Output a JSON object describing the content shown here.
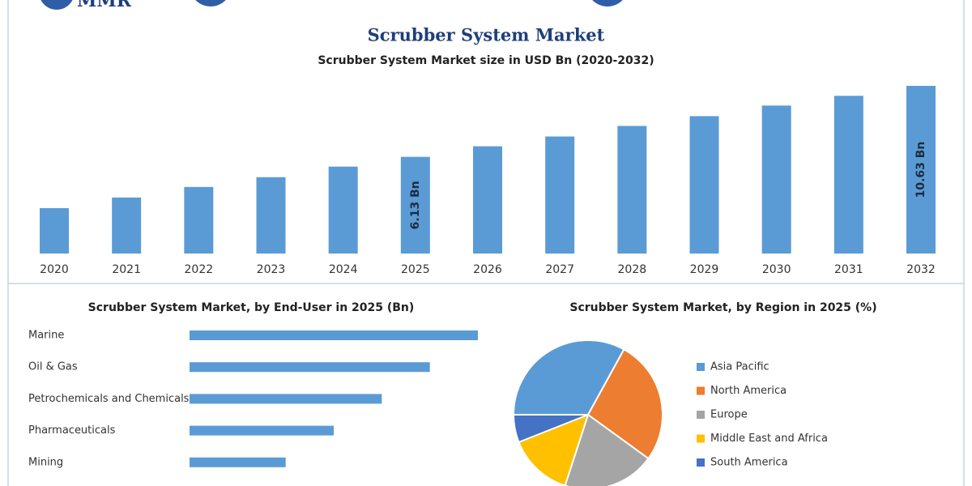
{
  "header": {
    "logo": "MMR"
  },
  "chart_data": [
    {
      "type": "bar",
      "title": "Scrubber System Market",
      "subtitle": "Scrubber System Market size in USD Bn (2020-2032)",
      "categories": [
        "2020",
        "2021",
        "2022",
        "2023",
        "2024",
        "2025",
        "2026",
        "2027",
        "2028",
        "2029",
        "2030",
        "2031",
        "2032"
      ],
      "values": [
        2.88,
        3.55,
        4.22,
        4.84,
        5.51,
        6.13,
        6.8,
        7.42,
        8.09,
        8.71,
        9.38,
        10.0,
        10.63
      ],
      "value_labels": [
        null,
        null,
        null,
        null,
        null,
        "6.13 Bn",
        null,
        null,
        null,
        null,
        null,
        null,
        "10.63 Bn"
      ],
      "color": "#5b9bd5"
    },
    {
      "type": "barh",
      "title": "Scrubber System Market, by End-User in 2025 (Bn)",
      "categories": [
        "Marine",
        "Oil & Gas",
        "Petrochemicals and Chemicals",
        "Pharmaceuticals",
        "Mining"
      ],
      "values": [
        1.8,
        1.5,
        1.2,
        0.9,
        0.6
      ],
      "color": "#5b9bd5"
    },
    {
      "type": "pie",
      "title": "Scrubber System Market, by Region in 2025 (%)",
      "categories": [
        "Asia Pacific",
        "North America",
        "Europe",
        "Middle East and Africa",
        "South America"
      ],
      "values": [
        33,
        27,
        20,
        14,
        6
      ],
      "colors": [
        "#5b9bd5",
        "#ed7d31",
        "#a5a5a5",
        "#ffc000",
        "#4472c4"
      ]
    }
  ]
}
